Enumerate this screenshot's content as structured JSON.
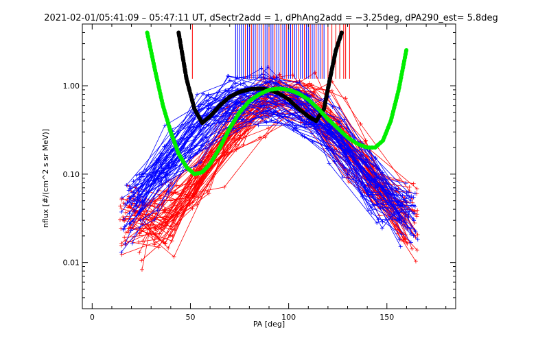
{
  "chart_data": {
    "type": "line",
    "title": "2021-02-01/05:41:09 – 05:47:11 UT, dSectr2add = 1, dPhAng2add = −3.25deg, dPA290_est=   5.8deg",
    "xlabel": "PA [deg]",
    "ylabel": "nflux [#/(cm^2 s sr MeV)]",
    "xlim": [
      -5,
      185
    ],
    "ylim": [
      0.003,
      5.0
    ],
    "yscale": "log",
    "x_ticks": [
      0,
      50,
      100,
      150
    ],
    "y_ticks": [
      0.01,
      0.1,
      1.0
    ],
    "y_tick_labels": [
      "0.01",
      "0.10",
      "1.00"
    ],
    "grid": false,
    "legend": "none",
    "colors": {
      "red": "#ff0000",
      "blue": "#0000ff",
      "black": "#000000",
      "green": "#00ee00"
    },
    "series": [
      {
        "color": "black",
        "style": "thick-dashed",
        "x": [
          44,
          48,
          52,
          56,
          60,
          65,
          70,
          75,
          80,
          85,
          90,
          95,
          100,
          105,
          110,
          114,
          118,
          121,
          124,
          127
        ],
        "y": [
          4.0,
          1.2,
          0.55,
          0.38,
          0.45,
          0.6,
          0.75,
          0.85,
          0.91,
          0.93,
          0.9,
          0.82,
          0.7,
          0.55,
          0.45,
          0.4,
          0.55,
          1.2,
          2.5,
          4.0
        ]
      },
      {
        "color": "green",
        "style": "thick-dotted",
        "x": [
          28,
          32,
          36,
          40,
          44,
          48,
          52,
          56,
          60,
          65,
          70,
          75,
          80,
          85,
          90,
          95,
          100,
          105,
          110,
          115,
          120,
          125,
          130,
          135,
          140,
          144,
          148,
          152,
          156,
          160
        ],
        "y": [
          4.0,
          1.5,
          0.6,
          0.3,
          0.17,
          0.12,
          0.1,
          0.105,
          0.13,
          0.2,
          0.33,
          0.5,
          0.67,
          0.8,
          0.9,
          0.93,
          0.9,
          0.82,
          0.7,
          0.55,
          0.42,
          0.33,
          0.26,
          0.22,
          0.2,
          0.2,
          0.24,
          0.4,
          0.9,
          2.6
        ]
      }
    ],
    "ticks_red_x": [
      51,
      78,
      81,
      84,
      87,
      90,
      93,
      96,
      99,
      102,
      105,
      108,
      111,
      114,
      117,
      120,
      122,
      124,
      126,
      128,
      129,
      131
    ],
    "ticks_blue_x": [
      73,
      74,
      75,
      76,
      77,
      79,
      80,
      82,
      83,
      85,
      86,
      88,
      89,
      91,
      92,
      94,
      95,
      97,
      98,
      100,
      101,
      103,
      104,
      106,
      107,
      109,
      110,
      112,
      113,
      115,
      116,
      118
    ]
  }
}
